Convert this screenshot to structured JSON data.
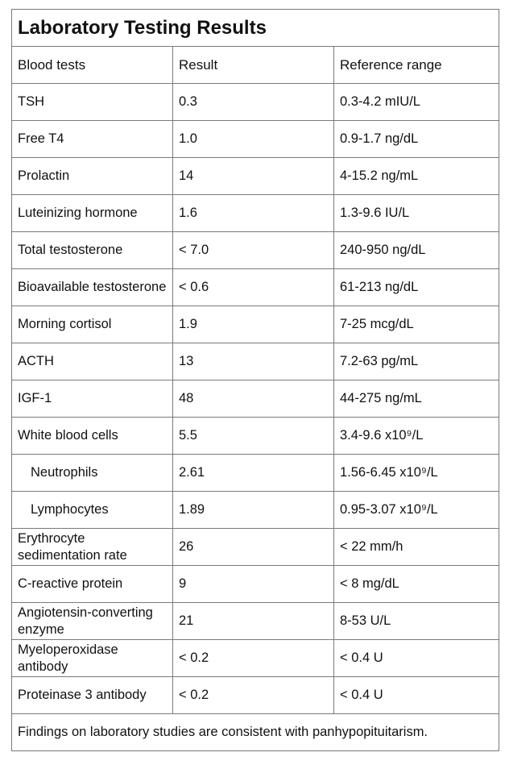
{
  "title": "Laboratory Testing Results",
  "headers": {
    "test": "Blood tests",
    "result": "Result",
    "range": "Reference range"
  },
  "rows": [
    {
      "test": "TSH",
      "result": "0.3",
      "range": "0.3-4.2 mIU/L",
      "indent": false
    },
    {
      "test": "Free T4",
      "result": "1.0",
      "range": "0.9-1.7 ng/dL",
      "indent": false
    },
    {
      "test": "Prolactin",
      "result": "14",
      "range": "4-15.2 ng/mL",
      "indent": false
    },
    {
      "test": "Luteinizing hormone",
      "result": "1.6",
      "range": "1.3-9.6 IU/L",
      "indent": false
    },
    {
      "test": "Total testosterone",
      "result": "< 7.0",
      "range": "240-950 ng/dL",
      "indent": false
    },
    {
      "test": "Bioavailable testosterone",
      "result": "< 0.6",
      "range": "61-213 ng/dL",
      "indent": false
    },
    {
      "test": "Morning cortisol",
      "result": "1.9",
      "range": "7-25 mcg/dL",
      "indent": false
    },
    {
      "test": "ACTH",
      "result": "13",
      "range": "7.2-63 pg/mL",
      "indent": false
    },
    {
      "test": "IGF-1",
      "result": "48",
      "range": "44-275 ng/mL",
      "indent": false
    },
    {
      "test": "White blood cells",
      "result": "5.5",
      "range": "3.4-9.6 x10⁹/L",
      "indent": false
    },
    {
      "test": "Neutrophils",
      "result": "2.61",
      "range": "1.56-6.45 x10⁹/L",
      "indent": true
    },
    {
      "test": "Lymphocytes",
      "result": "1.89",
      "range": "0.95-3.07 x10⁹/L",
      "indent": true
    },
    {
      "test": "Erythrocyte sedimentation rate",
      "result": "26",
      "range": "< 22 mm/h",
      "indent": false
    },
    {
      "test": "C-reactive protein",
      "result": "9",
      "range": "< 8 mg/dL",
      "indent": false
    },
    {
      "test": "Angiotensin-converting enzyme",
      "result": "21",
      "range": "8-53 U/L",
      "indent": false
    },
    {
      "test": "Myeloperoxidase antibody",
      "result": "< 0.2",
      "range": "< 0.4 U",
      "indent": false
    },
    {
      "test": "Proteinase 3 antibody",
      "result": "< 0.2",
      "range": "< 0.4 U",
      "indent": false
    }
  ],
  "footer": "Findings on laboratory studies are consistent with panhypopituitarism."
}
